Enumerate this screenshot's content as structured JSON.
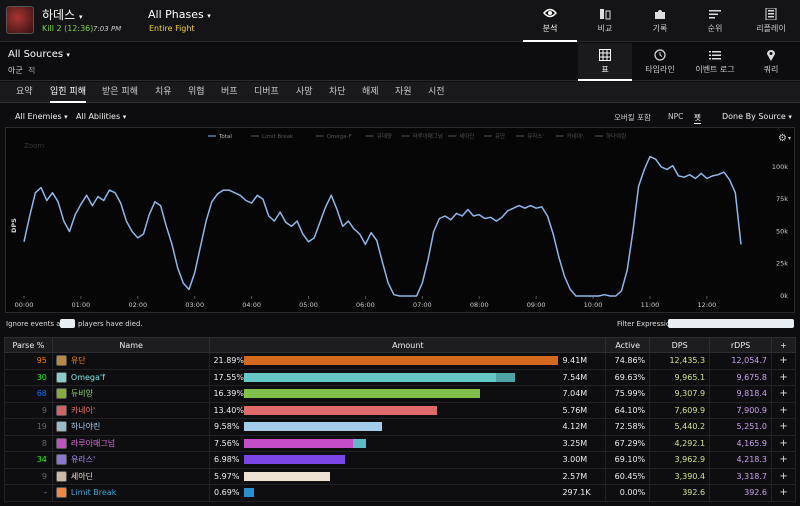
{
  "header": {
    "boss": "하데스",
    "kill": "Kill 2 (12:36)",
    "kill_time": "7:03 PM",
    "phase": "All Phases",
    "fight": "Entire Fight",
    "nav": [
      {
        "label": "분석",
        "icon": "eye-icon",
        "active": true
      },
      {
        "label": "비교",
        "icon": "compare-icon"
      },
      {
        "label": "기록",
        "icon": "puzzle-icon"
      },
      {
        "label": "순위",
        "icon": "ranking-icon"
      },
      {
        "label": "리플레이",
        "icon": "replay-icon"
      }
    ]
  },
  "sources": {
    "label": "All Sources",
    "friendly": "아군",
    "hostile": "적"
  },
  "views": [
    {
      "label": "표",
      "icon": "table-icon",
      "active": true
    },
    {
      "label": "타임라인",
      "icon": "clock-icon"
    },
    {
      "label": "이벤트 로그",
      "icon": "list-icon"
    },
    {
      "label": "쿼리",
      "icon": "pin-icon"
    }
  ],
  "tabs": [
    "요약",
    "입힌 피해",
    "받은 피해",
    "치유",
    "위협",
    "버프",
    "디버프",
    "사망",
    "차단",
    "해제",
    "자원",
    "시전"
  ],
  "active_tab": "입힌 피해",
  "filters": {
    "enemies": "All Enemies",
    "abilities": "All Abilities",
    "overkill": "오버킬 포함",
    "npc": "NPC",
    "pet": "펫",
    "group_by": "Done By Source"
  },
  "chart_data": {
    "type": "line",
    "ylabel": "DPS",
    "ytick_labels": [
      "0k",
      "25k",
      "50k",
      "75k",
      "100k"
    ],
    "yticks": [
      0,
      25000,
      50000,
      75000,
      100000
    ],
    "ylim": [
      0,
      110000
    ],
    "xtick_labels": [
      "00:00",
      "01:00",
      "02:00",
      "03:00",
      "04:00",
      "05:00",
      "06:00",
      "07:00",
      "08:00",
      "09:00",
      "10:00",
      "11:00",
      "12:00"
    ],
    "xlim": [
      0,
      756
    ],
    "zoom_label": "Zoom",
    "legend": [
      "Total",
      "Limit Break",
      "Omega-F",
      "유데양",
      "라루아매그넘",
      "세아딘",
      "유단",
      "유라스'",
      "카네아'",
      "하나야린"
    ],
    "series": [
      {
        "name": "Total",
        "color": "#8fb8ea",
        "points": [
          [
            0,
            42000
          ],
          [
            6,
            62000
          ],
          [
            12,
            80000
          ],
          [
            18,
            84000
          ],
          [
            24,
            74000
          ],
          [
            30,
            80000
          ],
          [
            36,
            73000
          ],
          [
            42,
            58000
          ],
          [
            48,
            50000
          ],
          [
            54,
            63000
          ],
          [
            60,
            71000
          ],
          [
            66,
            78000
          ],
          [
            72,
            70000
          ],
          [
            78,
            77000
          ],
          [
            84,
            74000
          ],
          [
            90,
            82000
          ],
          [
            96,
            80000
          ],
          [
            102,
            72000
          ],
          [
            108,
            58000
          ],
          [
            114,
            50000
          ],
          [
            120,
            45000
          ],
          [
            126,
            48000
          ],
          [
            132,
            63000
          ],
          [
            138,
            73000
          ],
          [
            144,
            70000
          ],
          [
            150,
            54000
          ],
          [
            156,
            40000
          ],
          [
            162,
            22000
          ],
          [
            168,
            10000
          ],
          [
            174,
            5000
          ],
          [
            180,
            18000
          ],
          [
            186,
            38000
          ],
          [
            192,
            58000
          ],
          [
            198,
            73000
          ],
          [
            204,
            79000
          ],
          [
            210,
            82000
          ],
          [
            216,
            82000
          ],
          [
            222,
            80000
          ],
          [
            228,
            78000
          ],
          [
            234,
            74000
          ],
          [
            240,
            72000
          ],
          [
            246,
            78000
          ],
          [
            252,
            75000
          ],
          [
            258,
            62000
          ],
          [
            264,
            58000
          ],
          [
            270,
            65000
          ],
          [
            276,
            57000
          ],
          [
            282,
            54000
          ],
          [
            288,
            58000
          ],
          [
            294,
            48000
          ],
          [
            300,
            42000
          ],
          [
            306,
            45000
          ],
          [
            312,
            57000
          ],
          [
            318,
            69000
          ],
          [
            324,
            78000
          ],
          [
            330,
            67000
          ],
          [
            336,
            54000
          ],
          [
            342,
            58000
          ],
          [
            348,
            52000
          ],
          [
            354,
            48000
          ],
          [
            360,
            40000
          ],
          [
            366,
            49000
          ],
          [
            372,
            43000
          ],
          [
            378,
            26000
          ],
          [
            384,
            10000
          ],
          [
            390,
            1000
          ],
          [
            396,
            0
          ],
          [
            402,
            0
          ],
          [
            408,
            0
          ],
          [
            414,
            0
          ],
          [
            420,
            10000
          ],
          [
            426,
            28000
          ],
          [
            432,
            50000
          ],
          [
            438,
            60000
          ],
          [
            444,
            62000
          ],
          [
            450,
            59000
          ],
          [
            456,
            64000
          ],
          [
            462,
            62000
          ],
          [
            468,
            67000
          ],
          [
            474,
            62000
          ],
          [
            480,
            63000
          ],
          [
            486,
            60000
          ],
          [
            492,
            61000
          ],
          [
            498,
            58000
          ],
          [
            504,
            61000
          ],
          [
            510,
            66000
          ],
          [
            516,
            68000
          ],
          [
            522,
            70000
          ],
          [
            528,
            68000
          ],
          [
            534,
            70000
          ],
          [
            540,
            68000
          ],
          [
            546,
            69000
          ],
          [
            552,
            62000
          ],
          [
            558,
            48000
          ],
          [
            564,
            30000
          ],
          [
            570,
            15000
          ],
          [
            576,
            5000
          ],
          [
            582,
            0
          ],
          [
            588,
            0
          ],
          [
            594,
            0
          ],
          [
            600,
            0
          ],
          [
            606,
            0
          ],
          [
            612,
            1000
          ],
          [
            618,
            0
          ],
          [
            624,
            0
          ],
          [
            630,
            4000
          ],
          [
            636,
            20000
          ],
          [
            642,
            50000
          ],
          [
            648,
            85000
          ],
          [
            654,
            98000
          ],
          [
            660,
            108000
          ],
          [
            666,
            106000
          ],
          [
            672,
            100000
          ],
          [
            678,
            98000
          ],
          [
            684,
            101000
          ],
          [
            690,
            93000
          ],
          [
            696,
            92000
          ],
          [
            702,
            94000
          ],
          [
            708,
            91000
          ],
          [
            714,
            95000
          ],
          [
            720,
            91000
          ],
          [
            726,
            93000
          ],
          [
            732,
            94000
          ],
          [
            738,
            96000
          ],
          [
            744,
            90000
          ],
          [
            750,
            80000
          ],
          [
            756,
            40000
          ]
        ]
      }
    ]
  },
  "below_chart": {
    "ignore_pre": "Ignore events after",
    "ignore_post": "players have died.",
    "filter_label": "Filter Expression:"
  },
  "table": {
    "headers": [
      "Parse %",
      "Name",
      "Amount",
      "Active",
      "DPS",
      "rDPS",
      "+"
    ],
    "max_pct": 21.89,
    "rows": [
      {
        "parse": "95",
        "parse_color": "#ff8000",
        "name": "유단",
        "name_color": "#ff8000",
        "icon_color": "#b84",
        "pct": "21.89%",
        "pct_value": 21.89,
        "bar_color": "#d2691e",
        "bar2": 0,
        "bar2_color": "",
        "amount": "9.41M",
        "active": "74.86%",
        "dps": "12,435.3",
        "rdps": "12,054.7"
      },
      {
        "parse": "30",
        "parse_color": "#1eff00",
        "name": "Omega'f",
        "name_color": "#7be5e0",
        "icon_color": "#8cc",
        "pct": "17.55%",
        "pct_value": 17.55,
        "bar_color": "#66c7c7",
        "bar2": 1.33,
        "bar2_color": "#4fa3a7",
        "amount": "7.54M",
        "active": "69.63%",
        "dps": "9,965.1",
        "rdps": "9,675.8"
      },
      {
        "parse": "68",
        "parse_color": "#0070ff",
        "name": "듀비양",
        "name_color": "#8fd16c",
        "icon_color": "#8a4",
        "pct": "16.39%",
        "pct_value": 16.39,
        "bar_color": "#7fbf4a",
        "bar2": 0,
        "bar2_color": "",
        "amount": "7.04M",
        "active": "75.99%",
        "dps": "9,307.9",
        "rdps": "9,818.4"
      },
      {
        "parse": "9",
        "parse_color": "#666666",
        "name": "카네아'",
        "name_color": "#f07070",
        "icon_color": "#c66",
        "pct": "13.40%",
        "pct_value": 13.4,
        "bar_color": "#e06a6a",
        "bar2": 0,
        "bar2_color": "",
        "amount": "5.76M",
        "active": "64.10%",
        "dps": "7,609.9",
        "rdps": "7,900.9"
      },
      {
        "parse": "19",
        "parse_color": "#666666",
        "name": "하나야린",
        "name_color": "#a8d0f0",
        "icon_color": "#9bc",
        "pct": "9.58%",
        "pct_value": 9.58,
        "bar_color": "#a3cde8",
        "bar2": 0,
        "bar2_color": "",
        "amount": "4.12M",
        "active": "72.58%",
        "dps": "5,440.2",
        "rdps": "5,251.0"
      },
      {
        "parse": "8",
        "parse_color": "#666666",
        "name": "라루아매그넘",
        "name_color": "#e070e0",
        "icon_color": "#b5b",
        "pct": "7.56%",
        "pct_value": 7.56,
        "bar_color": "#c34ec8",
        "bar2": 0.88,
        "bar2_color": "#5fb8c8",
        "amount": "3.25M",
        "active": "67.29%",
        "dps": "4,292.1",
        "rdps": "4,165.9"
      },
      {
        "parse": "34",
        "parse_color": "#1eff00",
        "name": "유라스'",
        "name_color": "#b090ff",
        "icon_color": "#87c",
        "pct": "6.98%",
        "pct_value": 6.98,
        "bar_color": "#7a47e6",
        "bar2": 0,
        "bar2_color": "",
        "amount": "3.00M",
        "active": "69.10%",
        "dps": "3,962.9",
        "rdps": "4,218.3"
      },
      {
        "parse": "9",
        "parse_color": "#666666",
        "name": "세아딘",
        "name_color": "#f0e6d8",
        "icon_color": "#cba",
        "pct": "5.97%",
        "pct_value": 5.97,
        "bar_color": "#efe2d2",
        "bar2": 0,
        "bar2_color": "",
        "amount": "2.57M",
        "active": "60.45%",
        "dps": "3,390.4",
        "rdps": "3,318.7"
      },
      {
        "parse": "-",
        "parse_color": "#999999",
        "name": "Limit Break",
        "name_color": "#3ba4d8",
        "icon_color": "#e84",
        "pct": "0.69%",
        "pct_value": 0.69,
        "bar_color": "#2a8fd0",
        "bar2": 0,
        "bar2_color": "",
        "amount": "297.1K",
        "active": "0.00%",
        "dps": "392.6",
        "rdps": "392.6"
      }
    ]
  }
}
